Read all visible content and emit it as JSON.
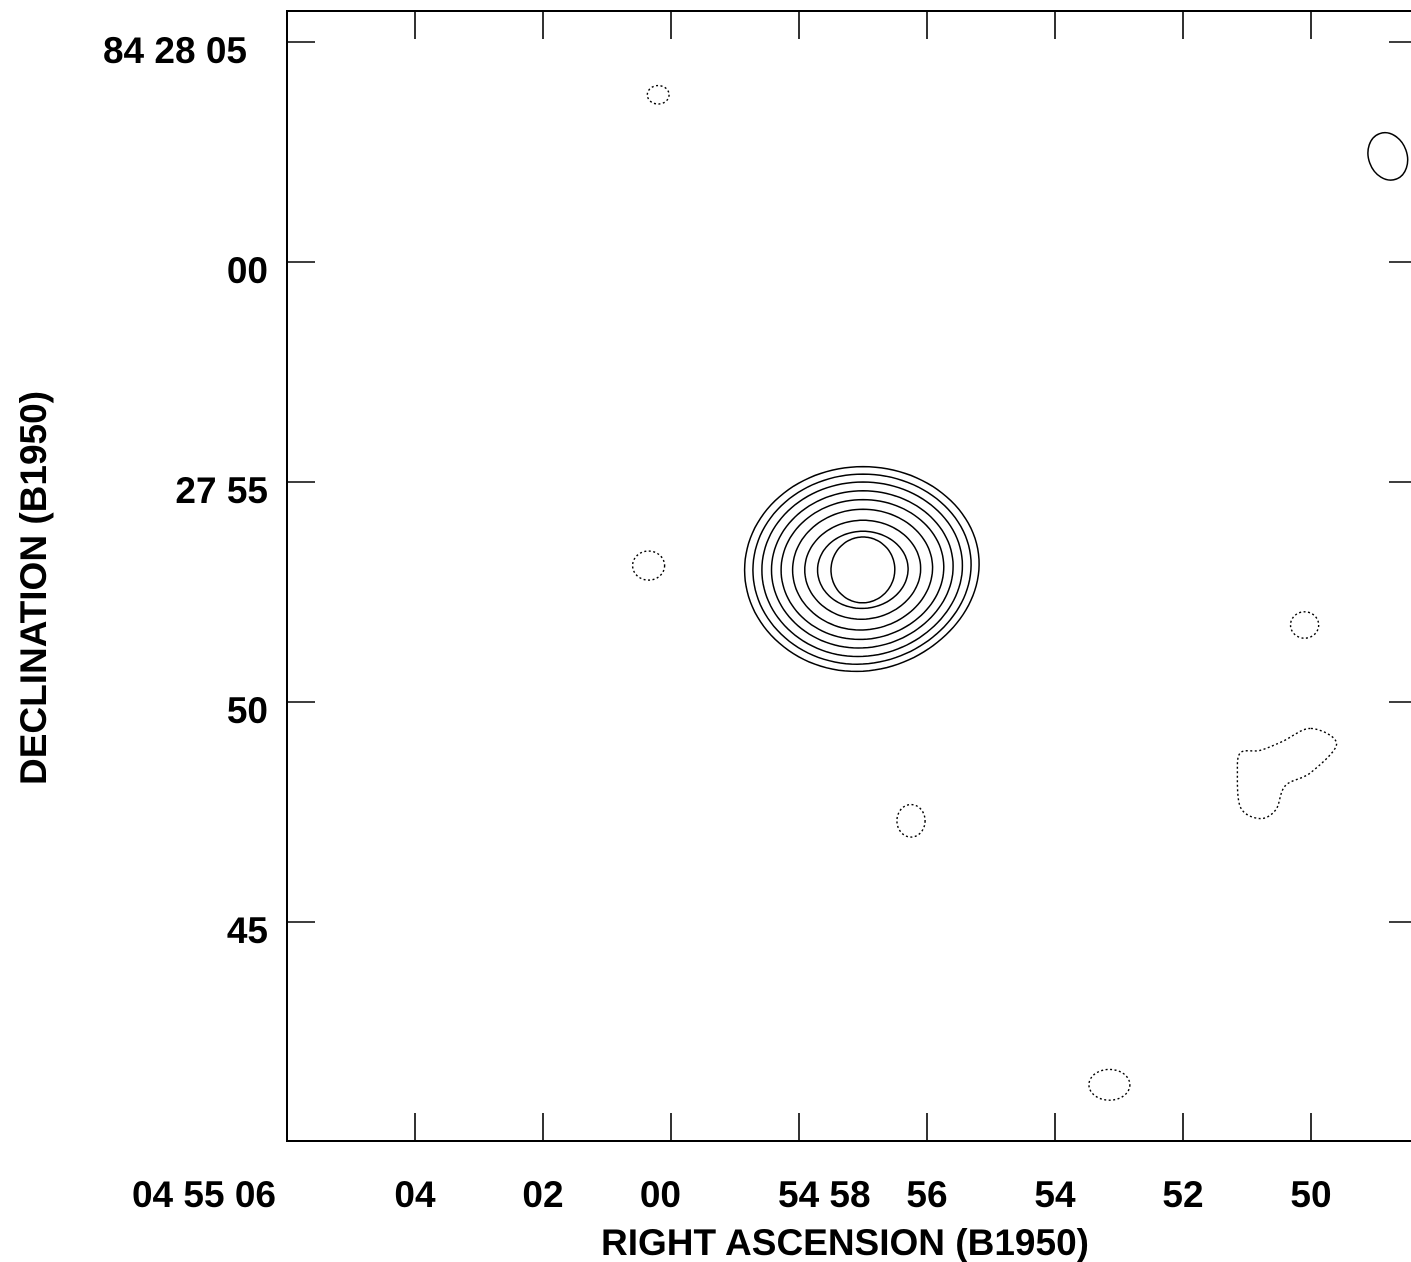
{
  "chart_data": {
    "type": "contour",
    "xlabel": "RIGHT  ASCENSION  (B1950)",
    "ylabel": "DECLINATION  (B1950)",
    "x_ticks": [
      {
        "ra_s": 66,
        "label": "04  55  06"
      },
      {
        "ra_s": 64,
        "label": "04"
      },
      {
        "ra_s": 62,
        "label": "02"
      },
      {
        "ra_s": 60,
        "label": "00"
      },
      {
        "ra_s": 58,
        "label": "54  58"
      },
      {
        "ra_s": 56,
        "label": "56"
      },
      {
        "ra_s": 54,
        "label": "54"
      },
      {
        "ra_s": 52,
        "label": "52"
      },
      {
        "ra_s": 50,
        "label": "50"
      }
    ],
    "y_ticks": [
      {
        "dec_s": 65,
        "label": "84  28  05"
      },
      {
        "dec_s": 60,
        "label": "00"
      },
      {
        "dec_s": 55,
        "label": "27  55"
      },
      {
        "dec_s": 50,
        "label": "50"
      },
      {
        "dec_s": 45,
        "label": "45"
      }
    ],
    "x_range_ra_s": [
      66.0,
      48.2
    ],
    "y_range_dec_s": [
      40.4,
      65.7
    ],
    "source_center": {
      "ra_s": 57.0,
      "dec_s": 53.0
    },
    "positive_contour_levels": 9,
    "positive_contours": [
      {
        "rx": 1.85,
        "ry": 2.35
      },
      {
        "rx": 1.72,
        "ry": 2.18
      },
      {
        "rx": 1.58,
        "ry": 2.0
      },
      {
        "rx": 1.43,
        "ry": 1.8
      },
      {
        "rx": 1.28,
        "ry": 1.6
      },
      {
        "rx": 1.1,
        "ry": 1.38
      },
      {
        "rx": 0.91,
        "ry": 1.13
      },
      {
        "rx": 0.71,
        "ry": 0.88
      },
      {
        "rx": 0.5,
        "ry": 0.75
      }
    ],
    "positive_blobs": [
      {
        "ra_s": 48.8,
        "dec_s": 62.4,
        "rx": 0.3,
        "ry": 0.55
      }
    ],
    "negative_blobs": [
      {
        "ra_s": 60.2,
        "dec_s": 63.8,
        "rx": 0.17,
        "ry": 0.21
      },
      {
        "ra_s": 60.35,
        "dec_s": 53.1,
        "rx": 0.25,
        "ry": 0.33
      },
      {
        "ra_s": 56.25,
        "dec_s": 47.3,
        "rx": 0.22,
        "ry": 0.37
      },
      {
        "ra_s": 50.1,
        "dec_s": 51.75,
        "rx": 0.22,
        "ry": 0.3
      },
      {
        "ra_s": 53.15,
        "dec_s": 41.3,
        "rx": 0.32,
        "ry": 0.35
      }
    ],
    "negative_region": [
      [
        50.0,
        49.4
      ],
      [
        49.6,
        49.05
      ],
      [
        50.0,
        48.4
      ],
      [
        50.4,
        48.1
      ],
      [
        50.55,
        47.55
      ],
      [
        50.8,
        47.35
      ],
      [
        51.1,
        47.6
      ],
      [
        51.15,
        48.4
      ],
      [
        51.1,
        48.85
      ],
      [
        50.8,
        48.9
      ],
      [
        50.45,
        49.1
      ]
    ]
  }
}
